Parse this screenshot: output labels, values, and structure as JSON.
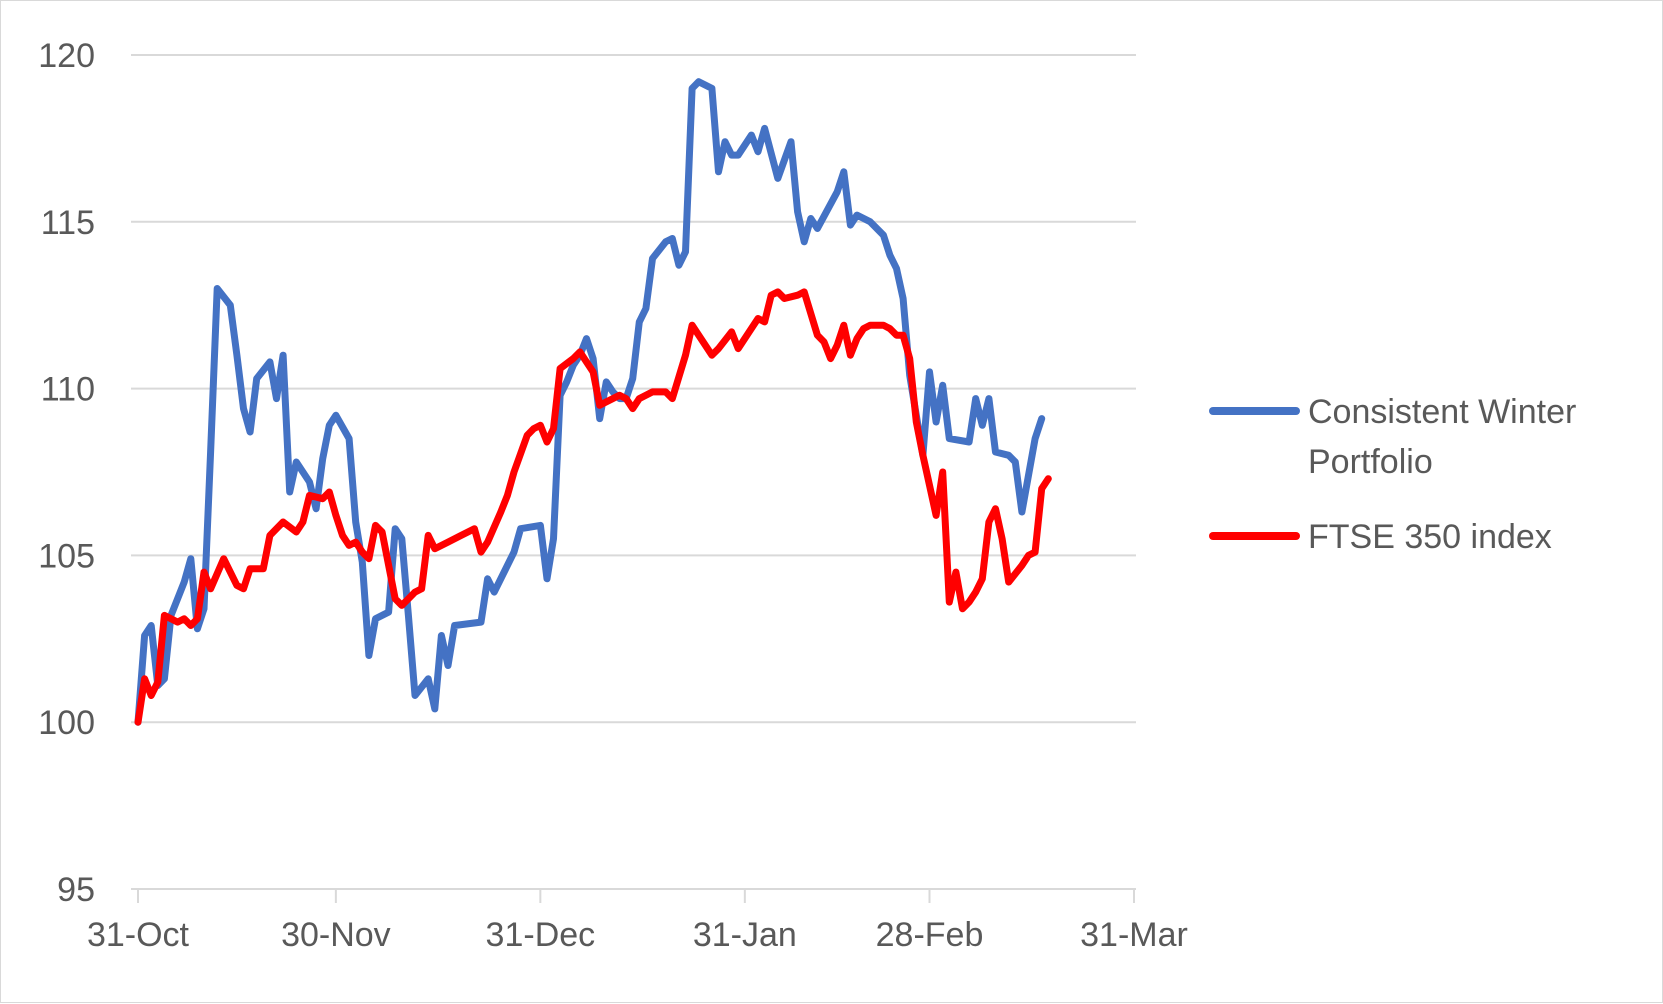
{
  "chart_data": {
    "type": "line",
    "title": "",
    "xlabel": "",
    "ylabel": "",
    "ylim": [
      95,
      120
    ],
    "xlim": [
      "2017-10-31",
      "2018-03-31"
    ],
    "y_ticks": [
      "95",
      "100",
      "105",
      "110",
      "115",
      "120"
    ],
    "x_ticks": [
      {
        "date": "2017-10-31",
        "label": "31-Oct"
      },
      {
        "date": "2017-11-30",
        "label": "30-Nov"
      },
      {
        "date": "2017-12-31",
        "label": "31-Dec"
      },
      {
        "date": "2018-01-31",
        "label": "31-Jan"
      },
      {
        "date": "2018-02-28",
        "label": "28-Feb"
      },
      {
        "date": "2018-03-31",
        "label": "31-Mar"
      }
    ],
    "grid": "horizontal",
    "legend_position": "right",
    "series": [
      {
        "name": "Consistent Winter Portfolio",
        "color": "#4472C4",
        "points": [
          [
            "2017-10-31",
            100.0
          ],
          [
            "2017-11-01",
            102.6
          ],
          [
            "2017-11-02",
            102.9
          ],
          [
            "2017-11-03",
            101.1
          ],
          [
            "2017-11-04",
            101.3
          ],
          [
            "2017-11-05",
            103.2
          ],
          [
            "2017-11-07",
            104.2
          ],
          [
            "2017-11-08",
            104.9
          ],
          [
            "2017-11-09",
            102.8
          ],
          [
            "2017-11-10",
            103.4
          ],
          [
            "2017-11-11",
            108.1
          ],
          [
            "2017-11-12",
            113.0
          ],
          [
            "2017-11-14",
            112.5
          ],
          [
            "2017-11-15",
            111.0
          ],
          [
            "2017-11-16",
            109.4
          ],
          [
            "2017-11-17",
            108.7
          ],
          [
            "2017-11-18",
            110.3
          ],
          [
            "2017-11-20",
            110.8
          ],
          [
            "2017-11-21",
            109.7
          ],
          [
            "2017-11-22",
            111.0
          ],
          [
            "2017-11-23",
            106.9
          ],
          [
            "2017-11-24",
            107.8
          ],
          [
            "2017-11-26",
            107.2
          ],
          [
            "2017-11-27",
            106.4
          ],
          [
            "2017-11-28",
            107.9
          ],
          [
            "2017-11-29",
            108.9
          ],
          [
            "2017-11-30",
            109.2
          ],
          [
            "2017-12-02",
            108.5
          ],
          [
            "2017-12-03",
            106.0
          ],
          [
            "2017-12-04",
            104.8
          ],
          [
            "2017-12-05",
            102.0
          ],
          [
            "2017-12-06",
            103.1
          ],
          [
            "2017-12-08",
            103.3
          ],
          [
            "2017-12-09",
            105.8
          ],
          [
            "2017-12-10",
            105.5
          ],
          [
            "2017-12-11",
            103.2
          ],
          [
            "2017-12-12",
            100.8
          ],
          [
            "2017-12-14",
            101.3
          ],
          [
            "2017-12-15",
            100.4
          ],
          [
            "2017-12-16",
            102.6
          ],
          [
            "2017-12-17",
            101.7
          ],
          [
            "2017-12-18",
            102.9
          ],
          [
            "2017-12-22",
            103.0
          ],
          [
            "2017-12-23",
            104.3
          ],
          [
            "2017-12-24",
            103.9
          ],
          [
            "2017-12-27",
            105.1
          ],
          [
            "2017-12-28",
            105.8
          ],
          [
            "2017-12-31",
            105.9
          ],
          [
            "2018-01-01",
            104.3
          ],
          [
            "2018-01-02",
            105.5
          ],
          [
            "2018-01-03",
            109.8
          ],
          [
            "2018-01-04",
            110.2
          ],
          [
            "2018-01-05",
            110.7
          ],
          [
            "2018-01-06",
            111.0
          ],
          [
            "2018-01-07",
            111.5
          ],
          [
            "2018-01-08",
            110.9
          ],
          [
            "2018-01-09",
            109.1
          ],
          [
            "2018-01-10",
            110.2
          ],
          [
            "2018-01-11",
            109.9
          ],
          [
            "2018-01-12",
            109.7
          ],
          [
            "2018-01-13",
            109.7
          ],
          [
            "2018-01-14",
            110.3
          ],
          [
            "2018-01-15",
            112.0
          ],
          [
            "2018-01-16",
            112.4
          ],
          [
            "2018-01-17",
            113.9
          ],
          [
            "2018-01-19",
            114.4
          ],
          [
            "2018-01-20",
            114.5
          ],
          [
            "2018-01-21",
            113.7
          ],
          [
            "2018-01-22",
            114.1
          ],
          [
            "2018-01-23",
            119.0
          ],
          [
            "2018-01-24",
            119.2
          ],
          [
            "2018-01-26",
            119.0
          ],
          [
            "2018-01-27",
            116.5
          ],
          [
            "2018-01-28",
            117.4
          ],
          [
            "2018-01-29",
            117.0
          ],
          [
            "2018-01-30",
            117.0
          ],
          [
            "2018-02-01",
            117.6
          ],
          [
            "2018-02-02",
            117.1
          ],
          [
            "2018-02-03",
            117.8
          ],
          [
            "2018-02-05",
            116.3
          ],
          [
            "2018-02-07",
            117.4
          ],
          [
            "2018-02-08",
            115.3
          ],
          [
            "2018-02-09",
            114.4
          ],
          [
            "2018-02-10",
            115.1
          ],
          [
            "2018-02-11",
            114.8
          ],
          [
            "2018-02-14",
            115.9
          ],
          [
            "2018-02-15",
            116.5
          ],
          [
            "2018-02-16",
            114.9
          ],
          [
            "2018-02-17",
            115.2
          ],
          [
            "2018-02-19",
            115.0
          ],
          [
            "2018-02-21",
            114.6
          ],
          [
            "2018-02-22",
            114.0
          ],
          [
            "2018-02-23",
            113.6
          ],
          [
            "2018-02-24",
            112.7
          ],
          [
            "2018-02-25",
            110.4
          ],
          [
            "2018-02-27",
            108.0
          ],
          [
            "2018-02-28",
            110.5
          ],
          [
            "2018-03-01",
            109.0
          ],
          [
            "2018-03-02",
            110.1
          ],
          [
            "2018-03-03",
            108.5
          ],
          [
            "2018-03-06",
            108.4
          ],
          [
            "2018-03-07",
            109.7
          ],
          [
            "2018-03-08",
            108.9
          ],
          [
            "2018-03-09",
            109.7
          ],
          [
            "2018-03-10",
            108.1
          ],
          [
            "2018-03-12",
            108.0
          ],
          [
            "2018-03-13",
            107.8
          ],
          [
            "2018-03-14",
            106.3
          ],
          [
            "2018-03-16",
            108.5
          ],
          [
            "2018-03-17",
            109.1
          ]
        ]
      },
      {
        "name": "FTSE 350 index",
        "color": "#FF0000",
        "points": [
          [
            "2017-10-31",
            100.0
          ],
          [
            "2017-11-01",
            101.3
          ],
          [
            "2017-11-02",
            100.8
          ],
          [
            "2017-11-03",
            101.2
          ],
          [
            "2017-11-04",
            103.2
          ],
          [
            "2017-11-06",
            103.0
          ],
          [
            "2017-11-07",
            103.1
          ],
          [
            "2017-11-08",
            102.9
          ],
          [
            "2017-11-09",
            103.1
          ],
          [
            "2017-11-10",
            104.5
          ],
          [
            "2017-11-11",
            104.0
          ],
          [
            "2017-11-13",
            104.9
          ],
          [
            "2017-11-14",
            104.5
          ],
          [
            "2017-11-15",
            104.1
          ],
          [
            "2017-11-16",
            104.0
          ],
          [
            "2017-11-17",
            104.6
          ],
          [
            "2017-11-19",
            104.6
          ],
          [
            "2017-11-20",
            105.6
          ],
          [
            "2017-11-21",
            105.8
          ],
          [
            "2017-11-22",
            106.0
          ],
          [
            "2017-11-24",
            105.7
          ],
          [
            "2017-11-25",
            106.0
          ],
          [
            "2017-11-26",
            106.8
          ],
          [
            "2017-11-28",
            106.7
          ],
          [
            "2017-11-29",
            106.9
          ],
          [
            "2017-11-30",
            106.2
          ],
          [
            "2017-12-01",
            105.6
          ],
          [
            "2017-12-02",
            105.3
          ],
          [
            "2017-12-03",
            105.4
          ],
          [
            "2017-12-04",
            105.1
          ],
          [
            "2017-12-05",
            104.9
          ],
          [
            "2017-12-06",
            105.9
          ],
          [
            "2017-12-07",
            105.7
          ],
          [
            "2017-12-09",
            103.7
          ],
          [
            "2017-12-10",
            103.5
          ],
          [
            "2017-12-11",
            103.7
          ],
          [
            "2017-12-12",
            103.9
          ],
          [
            "2017-12-13",
            104.0
          ],
          [
            "2017-12-14",
            105.6
          ],
          [
            "2017-12-15",
            105.2
          ],
          [
            "2017-12-17",
            105.4
          ],
          [
            "2017-12-19",
            105.6
          ],
          [
            "2017-12-21",
            105.8
          ],
          [
            "2017-12-22",
            105.1
          ],
          [
            "2017-12-23",
            105.4
          ],
          [
            "2017-12-25",
            106.3
          ],
          [
            "2017-12-26",
            106.8
          ],
          [
            "2017-12-27",
            107.5
          ],
          [
            "2017-12-29",
            108.6
          ],
          [
            "2017-12-30",
            108.8
          ],
          [
            "2017-12-31",
            108.9
          ],
          [
            "2018-01-01",
            108.4
          ],
          [
            "2018-01-02",
            108.8
          ],
          [
            "2018-01-03",
            110.6
          ],
          [
            "2018-01-05",
            110.9
          ],
          [
            "2018-01-06",
            111.1
          ],
          [
            "2018-01-07",
            110.8
          ],
          [
            "2018-01-08",
            110.5
          ],
          [
            "2018-01-09",
            109.5
          ],
          [
            "2018-01-10",
            109.6
          ],
          [
            "2018-01-12",
            109.8
          ],
          [
            "2018-01-13",
            109.7
          ],
          [
            "2018-01-14",
            109.4
          ],
          [
            "2018-01-15",
            109.7
          ],
          [
            "2018-01-16",
            109.8
          ],
          [
            "2018-01-17",
            109.9
          ],
          [
            "2018-01-19",
            109.9
          ],
          [
            "2018-01-20",
            109.7
          ],
          [
            "2018-01-22",
            111.0
          ],
          [
            "2018-01-23",
            111.9
          ],
          [
            "2018-01-24",
            111.6
          ],
          [
            "2018-01-25",
            111.3
          ],
          [
            "2018-01-26",
            111.0
          ],
          [
            "2018-01-27",
            111.2
          ],
          [
            "2018-01-29",
            111.7
          ],
          [
            "2018-01-30",
            111.2
          ],
          [
            "2018-02-02",
            112.1
          ],
          [
            "2018-02-03",
            112.0
          ],
          [
            "2018-02-04",
            112.8
          ],
          [
            "2018-02-05",
            112.9
          ],
          [
            "2018-02-06",
            112.7
          ],
          [
            "2018-02-08",
            112.8
          ],
          [
            "2018-02-09",
            112.9
          ],
          [
            "2018-02-11",
            111.6
          ],
          [
            "2018-02-12",
            111.4
          ],
          [
            "2018-02-13",
            110.9
          ],
          [
            "2018-02-14",
            111.3
          ],
          [
            "2018-02-15",
            111.9
          ],
          [
            "2018-02-16",
            111.0
          ],
          [
            "2018-02-17",
            111.5
          ],
          [
            "2018-02-18",
            111.8
          ],
          [
            "2018-02-19",
            111.9
          ],
          [
            "2018-02-21",
            111.9
          ],
          [
            "2018-02-22",
            111.8
          ],
          [
            "2018-02-23",
            111.6
          ],
          [
            "2018-02-24",
            111.6
          ],
          [
            "2018-02-25",
            110.9
          ],
          [
            "2018-02-26",
            109.0
          ],
          [
            "2018-02-27",
            108.0
          ],
          [
            "2018-02-28",
            107.1
          ],
          [
            "2018-03-01",
            106.2
          ],
          [
            "2018-03-02",
            107.5
          ],
          [
            "2018-03-03",
            103.6
          ],
          [
            "2018-03-04",
            104.5
          ],
          [
            "2018-03-05",
            103.4
          ],
          [
            "2018-03-06",
            103.6
          ],
          [
            "2018-03-07",
            103.9
          ],
          [
            "2018-03-08",
            104.3
          ],
          [
            "2018-03-09",
            106.0
          ],
          [
            "2018-03-10",
            106.4
          ],
          [
            "2018-03-11",
            105.5
          ],
          [
            "2018-03-12",
            104.2
          ],
          [
            "2018-03-14",
            104.7
          ],
          [
            "2018-03-15",
            105.0
          ],
          [
            "2018-03-16",
            105.1
          ],
          [
            "2018-03-17",
            107.0
          ],
          [
            "2018-03-18",
            107.3
          ]
        ]
      }
    ]
  }
}
